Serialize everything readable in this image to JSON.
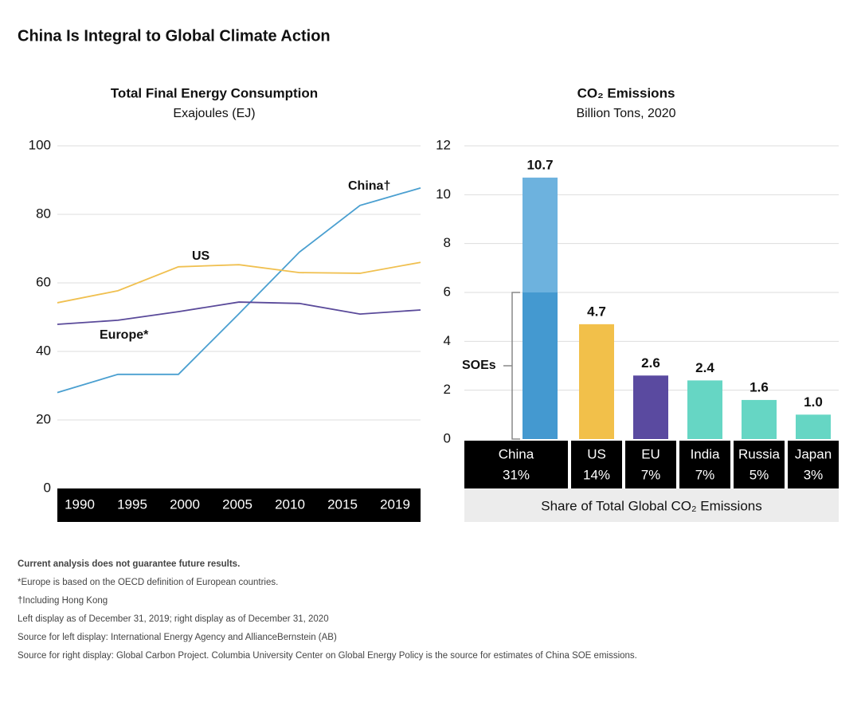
{
  "title": "China Is Integral to Global Climate Action",
  "notes": [
    "Current analysis does not guarantee future results.",
    "*Europe is based on the OECD definition of European countries.",
    "†Including Hong Kong",
    "Left display as of December 31, 2019; right display as of December 31, 2020",
    "Source for left display: International Energy Agency and AllianceBernstein (AB)",
    "Source for right display: Global Carbon Project. Columbia University Center on Global Energy Policy is the source for estimates of China SOE emissions."
  ],
  "chart_data": [
    {
      "type": "line",
      "title": "Total Final Energy Consumption",
      "subtitle": "Exajoules (EJ)",
      "categories": [
        "1990",
        "1995",
        "2000",
        "2005",
        "2010",
        "2015",
        "2019"
      ],
      "series": [
        {
          "name": "China†",
          "color": "#4a9fd0",
          "values": [
            28,
            33.3,
            33.3,
            51,
            69,
            82.6,
            87.7
          ]
        },
        {
          "name": "US",
          "color": "#f0c050",
          "values": [
            54.2,
            57.7,
            64.7,
            65.3,
            63,
            62.8,
            66
          ]
        },
        {
          "name": "Europe*",
          "color": "#5a4a9a",
          "values": [
            47.9,
            49.1,
            51.6,
            54.4,
            54,
            50.9,
            52.1
          ]
        }
      ],
      "ylim": [
        0,
        100
      ],
      "yticks": [
        0,
        20,
        40,
        60,
        80,
        100
      ],
      "grid": true
    },
    {
      "type": "bar",
      "title": "CO₂ Emissions",
      "subtitle": "Billion Tons, 2020",
      "categories": [
        "China",
        "US",
        "EU",
        "India",
        "Russia",
        "Japan"
      ],
      "values": [
        10.7,
        4.7,
        2.6,
        2.4,
        1.6,
        1.0
      ],
      "value_labels": [
        "10.7",
        "4.7",
        "2.6",
        "2.4",
        "1.6",
        "1.0"
      ],
      "colors": [
        "#6db2de",
        "#f2c04a",
        "#5a4aa0",
        "#66d6c4",
        "#66d6c4",
        "#66d6c4"
      ],
      "share_labels": [
        "31%",
        "14%",
        "7%",
        "7%",
        "5%",
        "3%"
      ],
      "footer": "Share of Total Global CO₂ Emissions",
      "soe": {
        "label": "SOEs",
        "value": 6,
        "color": "#4499d0"
      },
      "ylim": [
        0,
        12
      ],
      "yticks": [
        0,
        2,
        4,
        6,
        8,
        10,
        12
      ],
      "grid": true
    }
  ]
}
